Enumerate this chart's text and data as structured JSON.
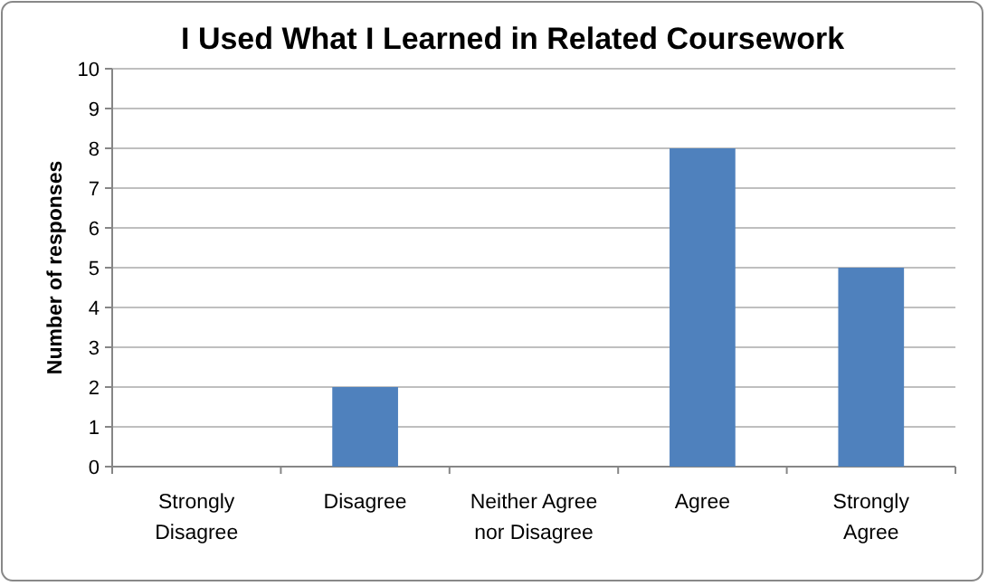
{
  "chart_data": {
    "type": "bar",
    "title": "I Used What I Learned in Related Coursework",
    "ylabel": "Number of responses",
    "categories": [
      "Strongly Disagree",
      "Disagree",
      "Neither Agree nor Disagree",
      "Agree",
      "Strongly Agree"
    ],
    "values": [
      0,
      2,
      0,
      8,
      5
    ],
    "color": "#4f81bd",
    "ylim": [
      0,
      10
    ],
    "yticks": [
      0,
      1,
      2,
      3,
      4,
      5,
      6,
      7,
      8,
      9,
      10
    ],
    "grid": "y"
  }
}
